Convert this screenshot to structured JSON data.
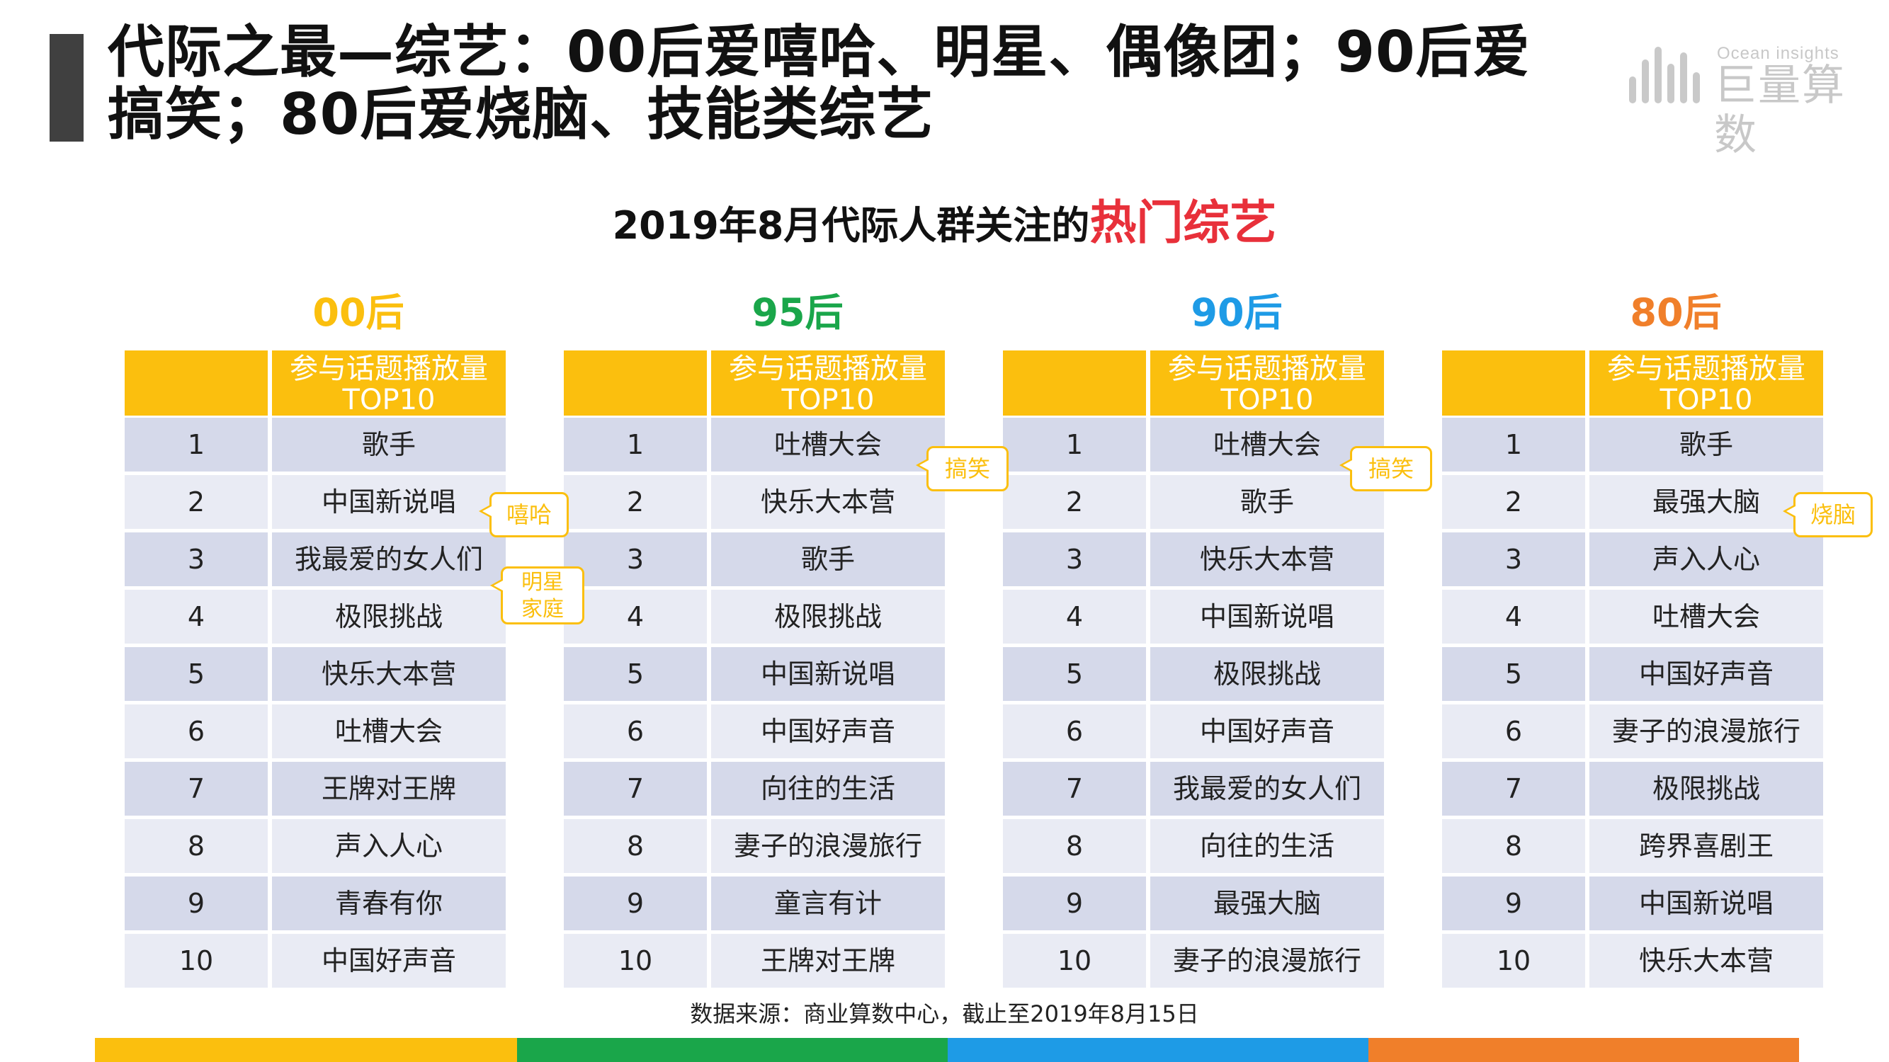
{
  "title": "代际之最—综艺：00后爱嘻哈、明星、偶像团；90后爱搞笑；80后爱烧脑、技能类综艺",
  "logo": {
    "en": "Ocean insights",
    "cn": "巨量算数"
  },
  "subtitle": {
    "main": "2019年8月代际人群关注的",
    "highlight": "热门综艺"
  },
  "colors": {
    "header": "#fbbf0e",
    "highlight": "#e8303a",
    "g00": "#fbbf0e",
    "g95": "#1aa64a",
    "g90": "#1e9be6",
    "g80": "#f07f2a"
  },
  "groups": [
    {
      "title": "00后",
      "header": "参与话题播放量TOP10",
      "rows": [
        {
          "rank": "1",
          "name": "歌手"
        },
        {
          "rank": "2",
          "name": "中国新说唱"
        },
        {
          "rank": "3",
          "name": "我最爱的女人们"
        },
        {
          "rank": "4",
          "name": "极限挑战"
        },
        {
          "rank": "5",
          "name": "快乐大本营"
        },
        {
          "rank": "6",
          "name": "吐槽大会"
        },
        {
          "rank": "7",
          "name": "王牌对王牌"
        },
        {
          "rank": "8",
          "name": "声入人心"
        },
        {
          "rank": "9",
          "name": "青春有你"
        },
        {
          "rank": "10",
          "name": "中国好声音"
        }
      ],
      "callouts": [
        "嘻哈",
        "明星家庭"
      ]
    },
    {
      "title": "95后",
      "header": "参与话题播放量TOP10",
      "rows": [
        {
          "rank": "1",
          "name": "吐槽大会"
        },
        {
          "rank": "2",
          "name": "快乐大本营"
        },
        {
          "rank": "3",
          "name": "歌手"
        },
        {
          "rank": "4",
          "name": "极限挑战"
        },
        {
          "rank": "5",
          "name": "中国新说唱"
        },
        {
          "rank": "6",
          "name": "中国好声音"
        },
        {
          "rank": "7",
          "name": "向往的生活"
        },
        {
          "rank": "8",
          "name": "妻子的浪漫旅行"
        },
        {
          "rank": "9",
          "name": "童言有计"
        },
        {
          "rank": "10",
          "name": "王牌对王牌"
        }
      ],
      "callouts": [
        "搞笑"
      ]
    },
    {
      "title": "90后",
      "header": "参与话题播放量TOP10",
      "rows": [
        {
          "rank": "1",
          "name": "吐槽大会"
        },
        {
          "rank": "2",
          "name": "歌手"
        },
        {
          "rank": "3",
          "name": "快乐大本营"
        },
        {
          "rank": "4",
          "name": "中国新说唱"
        },
        {
          "rank": "5",
          "name": "极限挑战"
        },
        {
          "rank": "6",
          "name": "中国好声音"
        },
        {
          "rank": "7",
          "name": "我最爱的女人们"
        },
        {
          "rank": "8",
          "name": "向往的生活"
        },
        {
          "rank": "9",
          "name": "最强大脑"
        },
        {
          "rank": "10",
          "name": "妻子的浪漫旅行"
        }
      ],
      "callouts": [
        "搞笑"
      ]
    },
    {
      "title": "80后",
      "header": "参与话题播放量TOP10",
      "rows": [
        {
          "rank": "1",
          "name": "歌手"
        },
        {
          "rank": "2",
          "name": "最强大脑"
        },
        {
          "rank": "3",
          "name": "声入人心"
        },
        {
          "rank": "4",
          "name": "吐槽大会"
        },
        {
          "rank": "5",
          "name": "中国好声音"
        },
        {
          "rank": "6",
          "name": "妻子的浪漫旅行"
        },
        {
          "rank": "7",
          "name": "极限挑战"
        },
        {
          "rank": "8",
          "name": "跨界喜剧王"
        },
        {
          "rank": "9",
          "name": "中国新说唱"
        },
        {
          "rank": "10",
          "name": "快乐大本营"
        }
      ],
      "callouts": [
        "烧脑"
      ]
    }
  ],
  "source": "数据来源：商业算数中心，截止至2019年8月15日"
}
